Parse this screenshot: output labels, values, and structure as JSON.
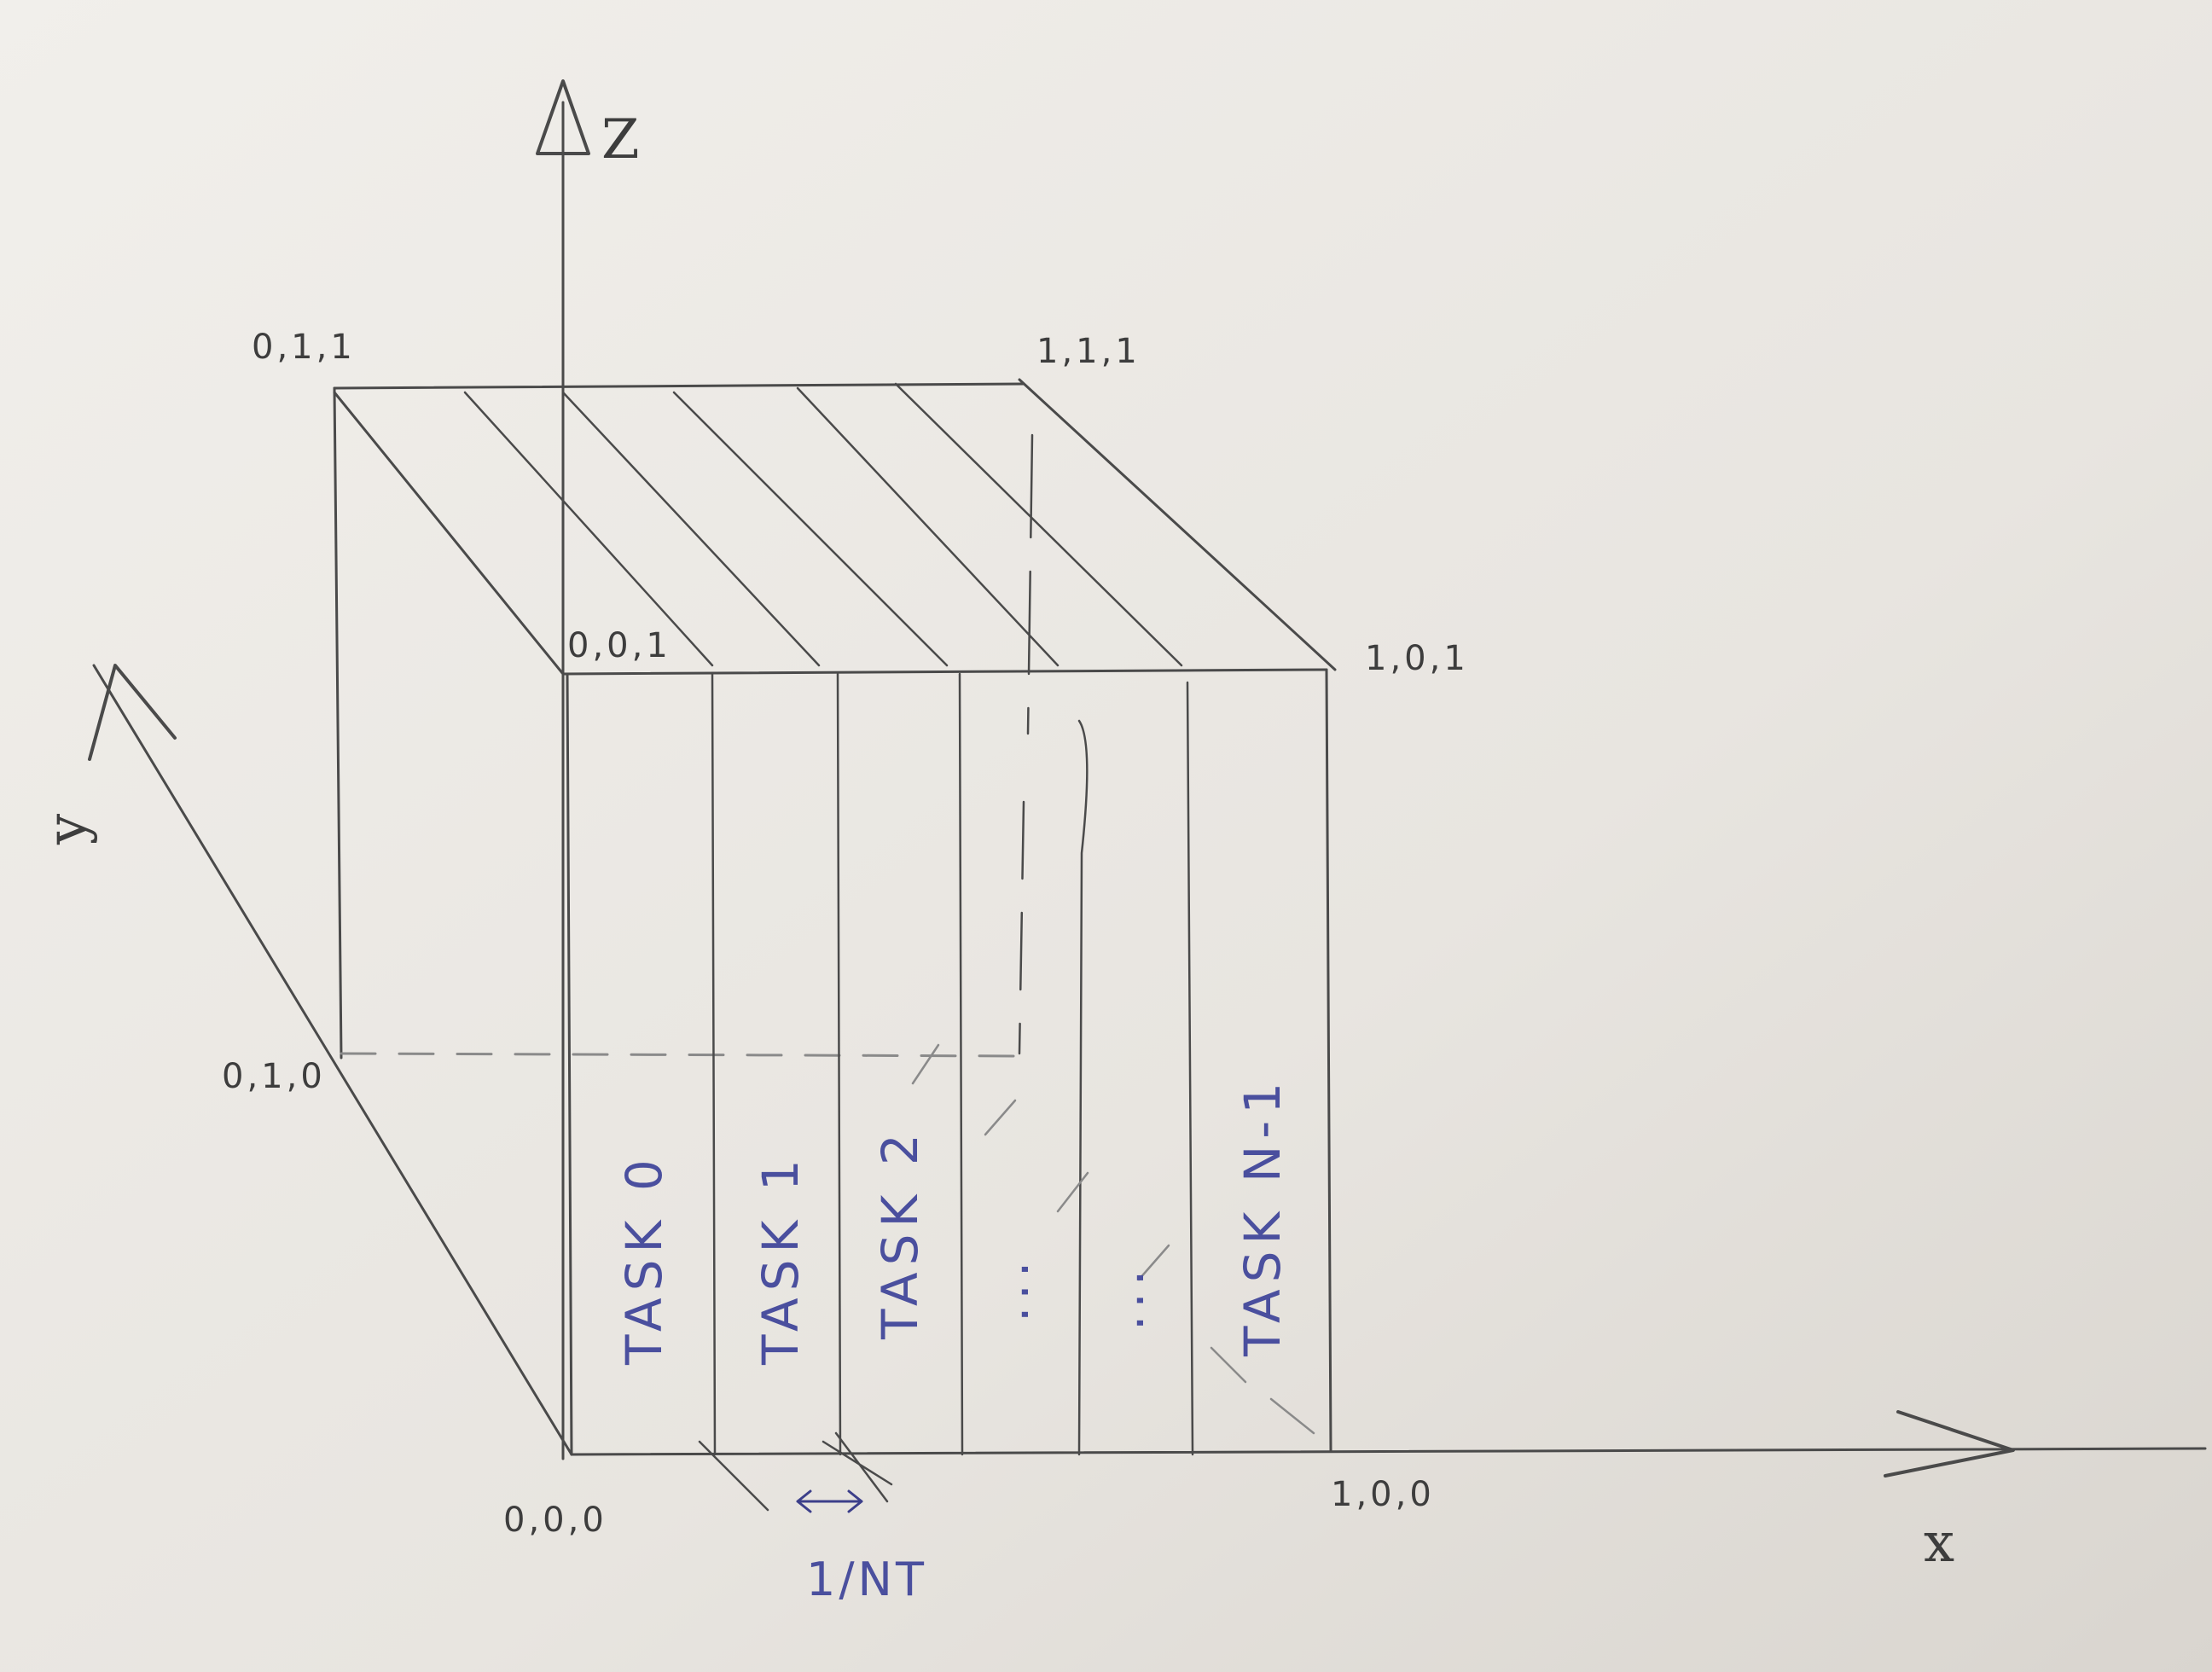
{
  "axes": {
    "x_label": "x",
    "y_label": "y",
    "z_label": "Z"
  },
  "vertices": {
    "v000": "0,0,0",
    "v100": "1,0,0",
    "v001": "0,0,1",
    "v101": "1,0,1",
    "v011": "0,1,1",
    "v111": "1,1,1",
    "v010": "0,1,0"
  },
  "tasks": [
    "TASK 0",
    "TASK 1",
    "TASK 2",
    "...",
    "...",
    "TASK N-1"
  ],
  "spacing_label": "1/NT",
  "colors": {
    "pencil": "#4a4a4a",
    "ink": "#4a4f9e",
    "paper": "#e9e6e1"
  }
}
